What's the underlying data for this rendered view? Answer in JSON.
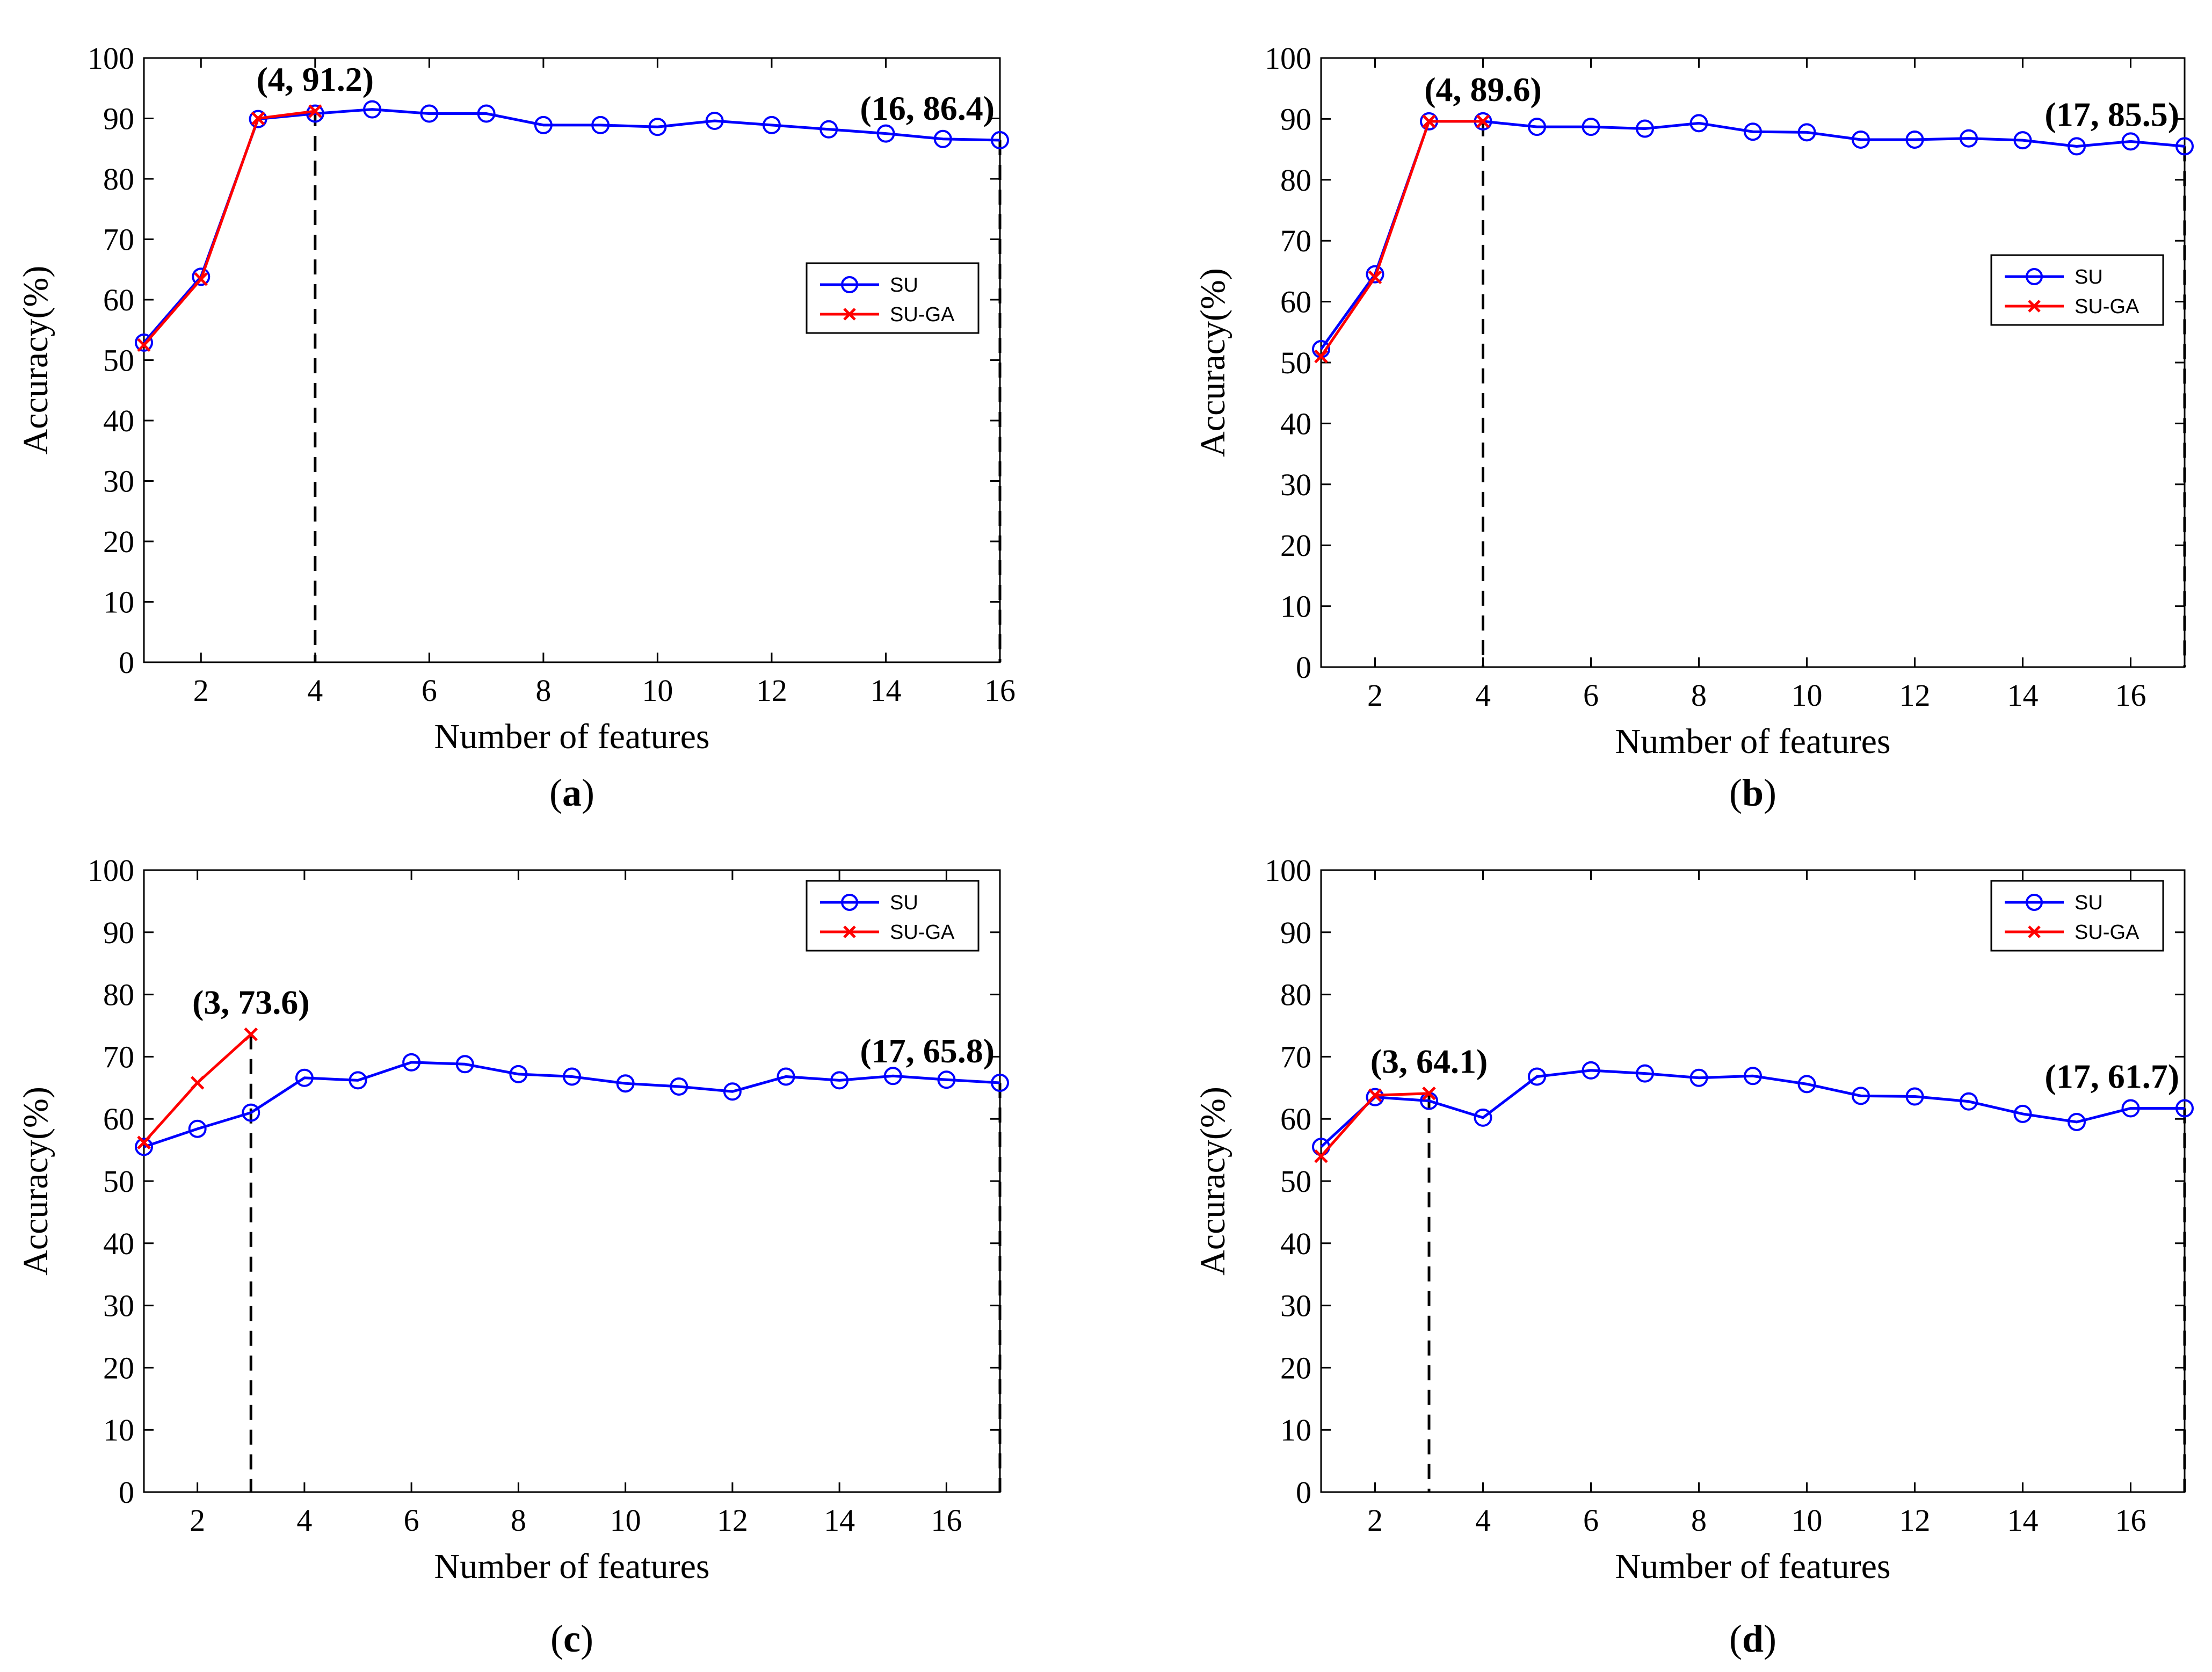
{
  "chart_data": [
    {
      "panel": "a",
      "type": "line",
      "caption": {
        "open": "(",
        "letter": "a",
        "close": ")"
      },
      "xlabel": "Number of features",
      "ylabel": "Accuracy(%)",
      "xlim": [
        1,
        16
      ],
      "ylim": [
        0,
        100
      ],
      "xticks": [
        2,
        4,
        6,
        8,
        10,
        12,
        14,
        16
      ],
      "yticks": [
        0,
        10,
        20,
        30,
        40,
        50,
        60,
        70,
        80,
        90,
        100
      ],
      "grid": false,
      "legend_position": "right-middle",
      "series": [
        {
          "name": "SU",
          "color": "#0000ff",
          "marker": "circle",
          "x": [
            1,
            2,
            3,
            4,
            5,
            6,
            7,
            8,
            9,
            10,
            11,
            12,
            13,
            14,
            15,
            16
          ],
          "y": [
            52.9,
            63.8,
            89.9,
            90.8,
            91.5,
            90.8,
            90.8,
            88.9,
            88.9,
            88.6,
            89.6,
            88.9,
            88.2,
            87.5,
            86.6,
            86.4
          ]
        },
        {
          "name": "SU-GA",
          "color": "#ff0000",
          "marker": "x",
          "x": [
            1,
            2,
            3,
            4
          ],
          "y": [
            52.5,
            63.4,
            90.0,
            91.2
          ]
        }
      ],
      "annotations": [
        {
          "text": "(4, 91.2)",
          "x": 4,
          "y": 91.2
        },
        {
          "text": "(16, 86.4)",
          "x": 16,
          "y": 86.4
        }
      ],
      "vlines": [
        4,
        16
      ]
    },
    {
      "panel": "b",
      "type": "line",
      "caption": {
        "open": "(",
        "letter": "b",
        "close": ")"
      },
      "xlabel": "Number of features",
      "ylabel": "Accuracy(%)",
      "xlim": [
        1,
        17
      ],
      "ylim": [
        0,
        100
      ],
      "xticks": [
        2,
        4,
        6,
        8,
        10,
        12,
        14,
        16
      ],
      "yticks": [
        0,
        10,
        20,
        30,
        40,
        50,
        60,
        70,
        80,
        90,
        100
      ],
      "grid": false,
      "legend_position": "right-middle",
      "series": [
        {
          "name": "SU",
          "color": "#0000ff",
          "marker": "circle",
          "x": [
            1,
            2,
            3,
            4,
            5,
            6,
            7,
            8,
            9,
            10,
            11,
            12,
            13,
            14,
            15,
            16,
            17
          ],
          "y": [
            52.2,
            64.5,
            89.6,
            89.6,
            88.7,
            88.7,
            88.4,
            89.3,
            87.9,
            87.8,
            86.6,
            86.6,
            86.8,
            86.5,
            85.5,
            86.3,
            85.5
          ]
        },
        {
          "name": "SU-GA",
          "color": "#ff0000",
          "marker": "x",
          "x": [
            1,
            2,
            3,
            4
          ],
          "y": [
            51.0,
            64.0,
            89.6,
            89.6
          ]
        }
      ],
      "annotations": [
        {
          "text": "(4, 89.6)",
          "x": 4,
          "y": 89.6
        },
        {
          "text": "(17, 85.5)",
          "x": 17,
          "y": 85.5
        }
      ],
      "vlines": [
        4,
        17
      ]
    },
    {
      "panel": "c",
      "type": "line",
      "caption": {
        "open": "(",
        "letter": "c",
        "close": ")"
      },
      "xlabel": "Number of features",
      "ylabel": "Accuracy(%)",
      "xlim": [
        1,
        17
      ],
      "ylim": [
        0,
        100
      ],
      "xticks": [
        2,
        4,
        6,
        8,
        10,
        12,
        14,
        16
      ],
      "yticks": [
        0,
        10,
        20,
        30,
        40,
        50,
        60,
        70,
        80,
        90,
        100
      ],
      "grid": false,
      "legend_position": "top-right",
      "series": [
        {
          "name": "SU",
          "color": "#0000ff",
          "marker": "circle",
          "x": [
            1,
            2,
            3,
            4,
            5,
            6,
            7,
            8,
            9,
            10,
            11,
            12,
            13,
            14,
            15,
            16,
            17
          ],
          "y": [
            55.5,
            58.4,
            61.0,
            66.6,
            66.2,
            69.1,
            68.8,
            67.2,
            66.8,
            65.7,
            65.2,
            64.4,
            66.8,
            66.2,
            66.9,
            66.3,
            65.8
          ]
        },
        {
          "name": "SU-GA",
          "color": "#ff0000",
          "marker": "x",
          "x": [
            1,
            2,
            3
          ],
          "y": [
            56.2,
            65.8,
            73.6
          ]
        }
      ],
      "annotations": [
        {
          "text": "(3, 73.6)",
          "x": 3,
          "y": 73.6
        },
        {
          "text": "(17, 65.8)",
          "x": 17,
          "y": 65.8
        }
      ],
      "vlines": [
        3,
        17
      ]
    },
    {
      "panel": "d",
      "type": "line",
      "caption": {
        "open": "(",
        "letter": "d",
        "close": ")"
      },
      "xlabel": "Number of features",
      "ylabel": "Accuracy(%)",
      "xlim": [
        1,
        17
      ],
      "ylim": [
        0,
        100
      ],
      "xticks": [
        2,
        4,
        6,
        8,
        10,
        12,
        14,
        16
      ],
      "yticks": [
        0,
        10,
        20,
        30,
        40,
        50,
        60,
        70,
        80,
        90,
        100
      ],
      "grid": false,
      "legend_position": "top-right",
      "series": [
        {
          "name": "SU",
          "color": "#0000ff",
          "marker": "circle",
          "x": [
            1,
            2,
            3,
            4,
            5,
            6,
            7,
            8,
            9,
            10,
            11,
            12,
            13,
            14,
            15,
            16,
            17
          ],
          "y": [
            55.5,
            63.5,
            62.9,
            60.2,
            66.8,
            67.8,
            67.3,
            66.6,
            66.9,
            65.6,
            63.7,
            63.6,
            62.8,
            60.8,
            59.5,
            61.7,
            61.7
          ]
        },
        {
          "name": "SU-GA",
          "color": "#ff0000",
          "marker": "x",
          "x": [
            1,
            2,
            3
          ],
          "y": [
            54.0,
            63.8,
            64.1
          ]
        }
      ],
      "annotations": [
        {
          "text": "(3, 64.1)",
          "x": 3,
          "y": 64.1
        },
        {
          "text": "(17, 61.7)",
          "x": 17,
          "y": 61.7
        }
      ],
      "vlines": [
        3,
        17
      ]
    }
  ]
}
